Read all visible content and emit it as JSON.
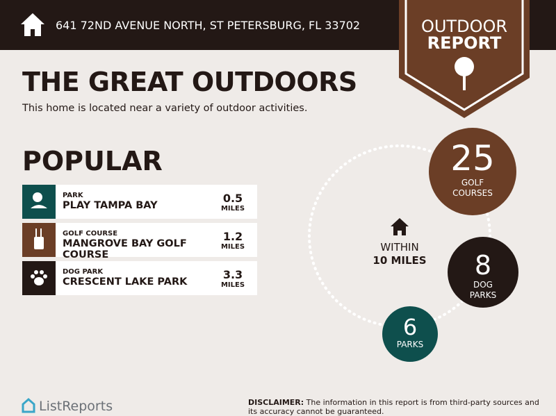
{
  "header": {
    "address": "641 72ND AVENUE NORTH, ST PETERSBURG, FL 33702"
  },
  "badge": {
    "line1": "OUTDOOR",
    "line2": "REPORT"
  },
  "title": "THE GREAT OUTDOORS",
  "subtitle": "This home is located near a variety of outdoor activities.",
  "popular": {
    "heading": "POPULAR",
    "items": [
      {
        "category": "PARK",
        "name": "PLAY TAMPA BAY",
        "distance": 0.5,
        "unit": "MILES"
      },
      {
        "category": "GOLF COURSE",
        "name": "MANGROVE BAY GOLF COURSE",
        "distance": 1.2,
        "unit": "MILES"
      },
      {
        "category": "DOG PARK",
        "name": "CRESCENT LAKE PARK",
        "distance": 3.3,
        "unit": "MILES"
      }
    ]
  },
  "within": {
    "line1": "WITHIN",
    "line2": "10 MILES"
  },
  "counts": [
    {
      "count": 25,
      "label": "GOLF COURSES"
    },
    {
      "count": 8,
      "label": "DOG PARKS"
    },
    {
      "count": 6,
      "label": "PARKS"
    }
  ],
  "footer": {
    "logo": "ListReports",
    "disclaimer_label": "DISCLAIMER:",
    "disclaimer": "The information in this report is from third-party sources and its accuracy cannot be guaranteed."
  }
}
